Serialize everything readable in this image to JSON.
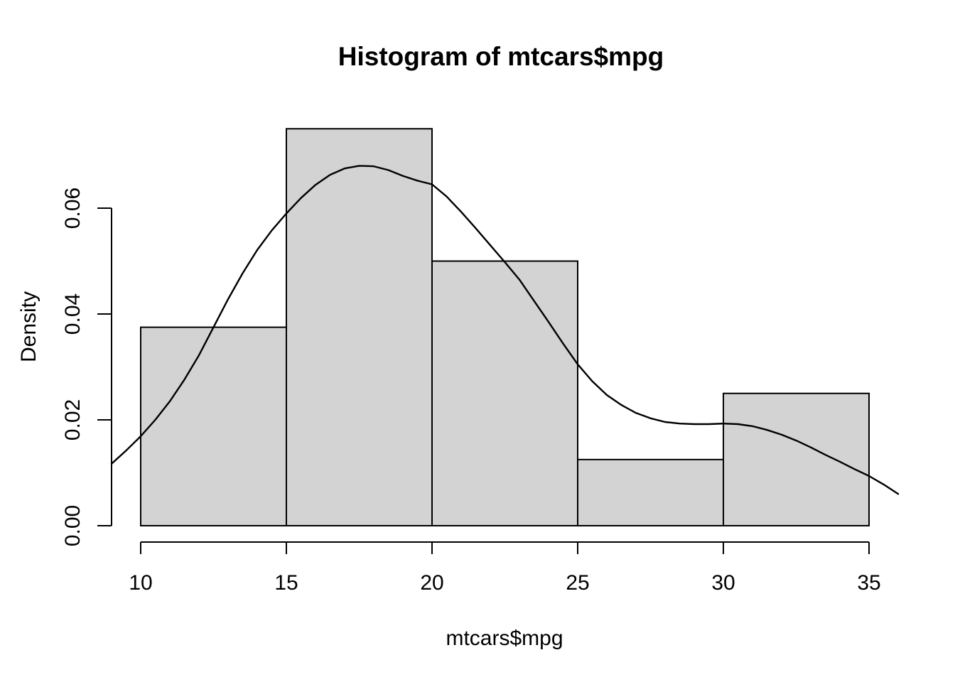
{
  "chart_data": {
    "type": "histogram",
    "title": "Histogram of mtcars$mpg",
    "xlabel": "mtcars$mpg",
    "ylabel": "Density",
    "grid": false,
    "legend": false,
    "x_axis": {
      "ticks": [
        10,
        15,
        20,
        25,
        30,
        35
      ],
      "labels": [
        "10",
        "15",
        "20",
        "25",
        "30",
        "35"
      ],
      "range_shown": [
        9,
        36
      ]
    },
    "y_axis": {
      "ticks": [
        0,
        0.02,
        0.04,
        0.06
      ],
      "labels": [
        "0.00",
        "0.02",
        "0.04",
        "0.06"
      ],
      "range_shown": [
        0,
        0.078
      ]
    },
    "bins": {
      "breaks": [
        10,
        15,
        20,
        25,
        30,
        35
      ],
      "densities": [
        0.0375,
        0.075,
        0.05,
        0.0125,
        0.025
      ]
    },
    "density_curve": {
      "x": [
        9,
        9.5,
        10,
        10.5,
        11,
        11.5,
        12,
        12.5,
        13,
        13.5,
        14,
        14.5,
        15,
        15.5,
        16,
        16.5,
        17,
        17.5,
        18,
        18.5,
        19,
        19.5,
        20,
        20.5,
        21,
        21.5,
        22,
        22.5,
        23,
        23.5,
        24,
        24.5,
        25,
        25.5,
        26,
        26.5,
        27,
        27.5,
        28,
        28.5,
        29,
        29.5,
        30,
        30.5,
        31,
        31.5,
        32,
        32.5,
        33,
        33.5,
        34,
        34.5,
        35,
        35.5,
        36
      ],
      "density": [
        0.0117,
        0.0142,
        0.0169,
        0.02,
        0.0235,
        0.0276,
        0.0322,
        0.0375,
        0.0428,
        0.0477,
        0.0521,
        0.0558,
        0.059,
        0.0619,
        0.0644,
        0.0663,
        0.0675,
        0.068,
        0.0679,
        0.0672,
        0.0661,
        0.0652,
        0.0645,
        0.0622,
        0.0593,
        0.0562,
        0.053,
        0.0498,
        0.0465,
        0.0425,
        0.0385,
        0.0344,
        0.0305,
        0.0273,
        0.0247,
        0.0228,
        0.0213,
        0.0203,
        0.0196,
        0.0193,
        0.0192,
        0.0192,
        0.0193,
        0.0192,
        0.0188,
        0.0181,
        0.0172,
        0.0161,
        0.0148,
        0.0134,
        0.0121,
        0.0107,
        0.0094,
        0.0078,
        0.006
      ]
    },
    "colors": {
      "background": "#ffffff",
      "bar_fill": "#d3d3d3",
      "bar_border": "#000000",
      "density_curve": "#000000",
      "axis": "#000000",
      "text": "#000000"
    }
  }
}
